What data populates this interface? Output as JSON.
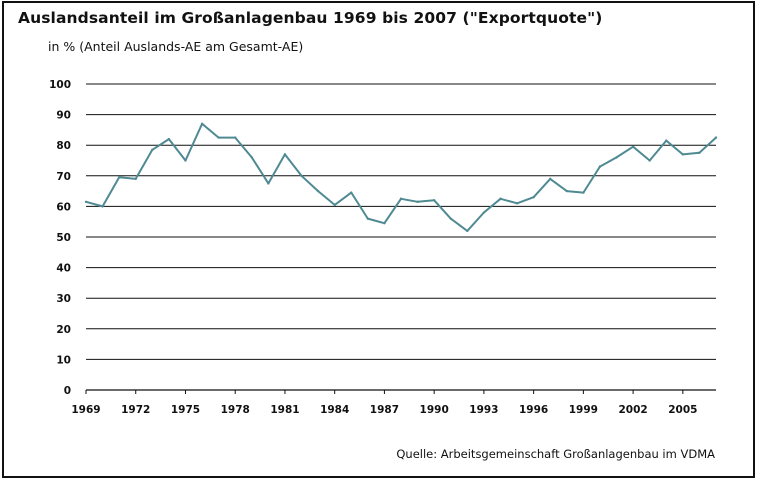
{
  "title": "Auslandsanteil im Großanlagenbau 1969 bis  2007 (\"Exportquote\")",
  "subtitle": "in % (Anteil Auslands-AE  am Gesamt-AE)",
  "source": "Quelle: Arbeitsgemeinschaft Großanlagenbau im VDMA",
  "chart_data": {
    "type": "line",
    "title": "Auslandsanteil im Großanlagenbau 1969 bis  2007 (\"Exportquote\")",
    "xlabel": "",
    "ylabel": "in % (Anteil Auslands-AE  am Gesamt-AE)",
    "xlim": [
      1969,
      2007
    ],
    "ylim": [
      0,
      100
    ],
    "y_ticks": [
      0,
      10,
      20,
      30,
      40,
      50,
      60,
      70,
      80,
      90,
      100
    ],
    "x_ticks": [
      1969,
      1972,
      1975,
      1978,
      1981,
      1984,
      1987,
      1990,
      1993,
      1996,
      1999,
      2002,
      2005
    ],
    "grid": "horizontal",
    "line_color": "#4f8a93",
    "series": [
      {
        "name": "",
        "x": [
          1969,
          1970,
          1971,
          1972,
          1973,
          1974,
          1975,
          1976,
          1977,
          1978,
          1979,
          1980,
          1981,
          1982,
          1983,
          1984,
          1985,
          1986,
          1987,
          1988,
          1989,
          1990,
          1991,
          1992,
          1993,
          1994,
          1995,
          1996,
          1997,
          1998,
          1999,
          2000,
          2001,
          2002,
          2003,
          2004,
          2005,
          2006,
          2007
        ],
        "values": [
          61.5,
          60,
          69.5,
          69,
          78.5,
          82,
          75,
          87,
          82.5,
          82.5,
          76,
          67.5,
          77,
          70,
          65,
          60.5,
          64.5,
          56,
          54.5,
          62.5,
          61.5,
          62,
          56,
          52,
          58,
          62.5,
          61,
          63,
          69,
          65,
          64.5,
          73,
          76,
          79.5,
          75,
          81.5,
          77,
          77.5,
          82.5
        ]
      }
    ]
  }
}
